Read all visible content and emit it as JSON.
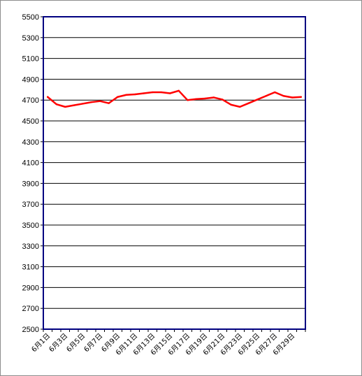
{
  "chart_data": {
    "type": "line",
    "title": "",
    "xlabel": "",
    "ylabel": "",
    "ylim": [
      2500,
      5500
    ],
    "yticks": [
      2500,
      2700,
      2900,
      3100,
      3300,
      3500,
      3700,
      3900,
      4100,
      4300,
      4500,
      4700,
      4900,
      5100,
      5300,
      5500
    ],
    "x_tick_labels": [
      "6月1日",
      "6月3日",
      "6月5日",
      "6月7日",
      "6月9日",
      "6月11日",
      "6月13日",
      "6月15日",
      "6月17日",
      "6月19日",
      "6月21日",
      "6月23日",
      "6月25日",
      "6月27日",
      "6月29日"
    ],
    "grid": true,
    "legend": "none",
    "series": [
      {
        "color": "#ff0000",
        "x": [
          "6月1日",
          "6月2日",
          "6月3日",
          "6月4日",
          "6月5日",
          "6月6日",
          "6月7日",
          "6月8日",
          "6月9日",
          "6月10日",
          "6月11日",
          "6月12日",
          "6月13日",
          "6月14日",
          "6月15日",
          "6月16日",
          "6月17日",
          "6月18日",
          "6月19日",
          "6月20日",
          "6月21日",
          "6月22日",
          "6月23日",
          "6月24日",
          "6月25日",
          "6月26日",
          "6月27日",
          "6月28日",
          "6月29日",
          "6月30日"
        ],
        "values": [
          4730,
          4660,
          4635,
          4650,
          4665,
          4680,
          4690,
          4670,
          4730,
          4750,
          4755,
          4765,
          4775,
          4775,
          4765,
          4790,
          4700,
          4710,
          4715,
          4725,
          4705,
          4655,
          4635,
          4670,
          4705,
          4740,
          4775,
          4740,
          4725,
          4730
        ]
      }
    ]
  },
  "colors": {
    "plot_border": "#000080",
    "gridline": "#000000",
    "line": "#ff0000"
  }
}
